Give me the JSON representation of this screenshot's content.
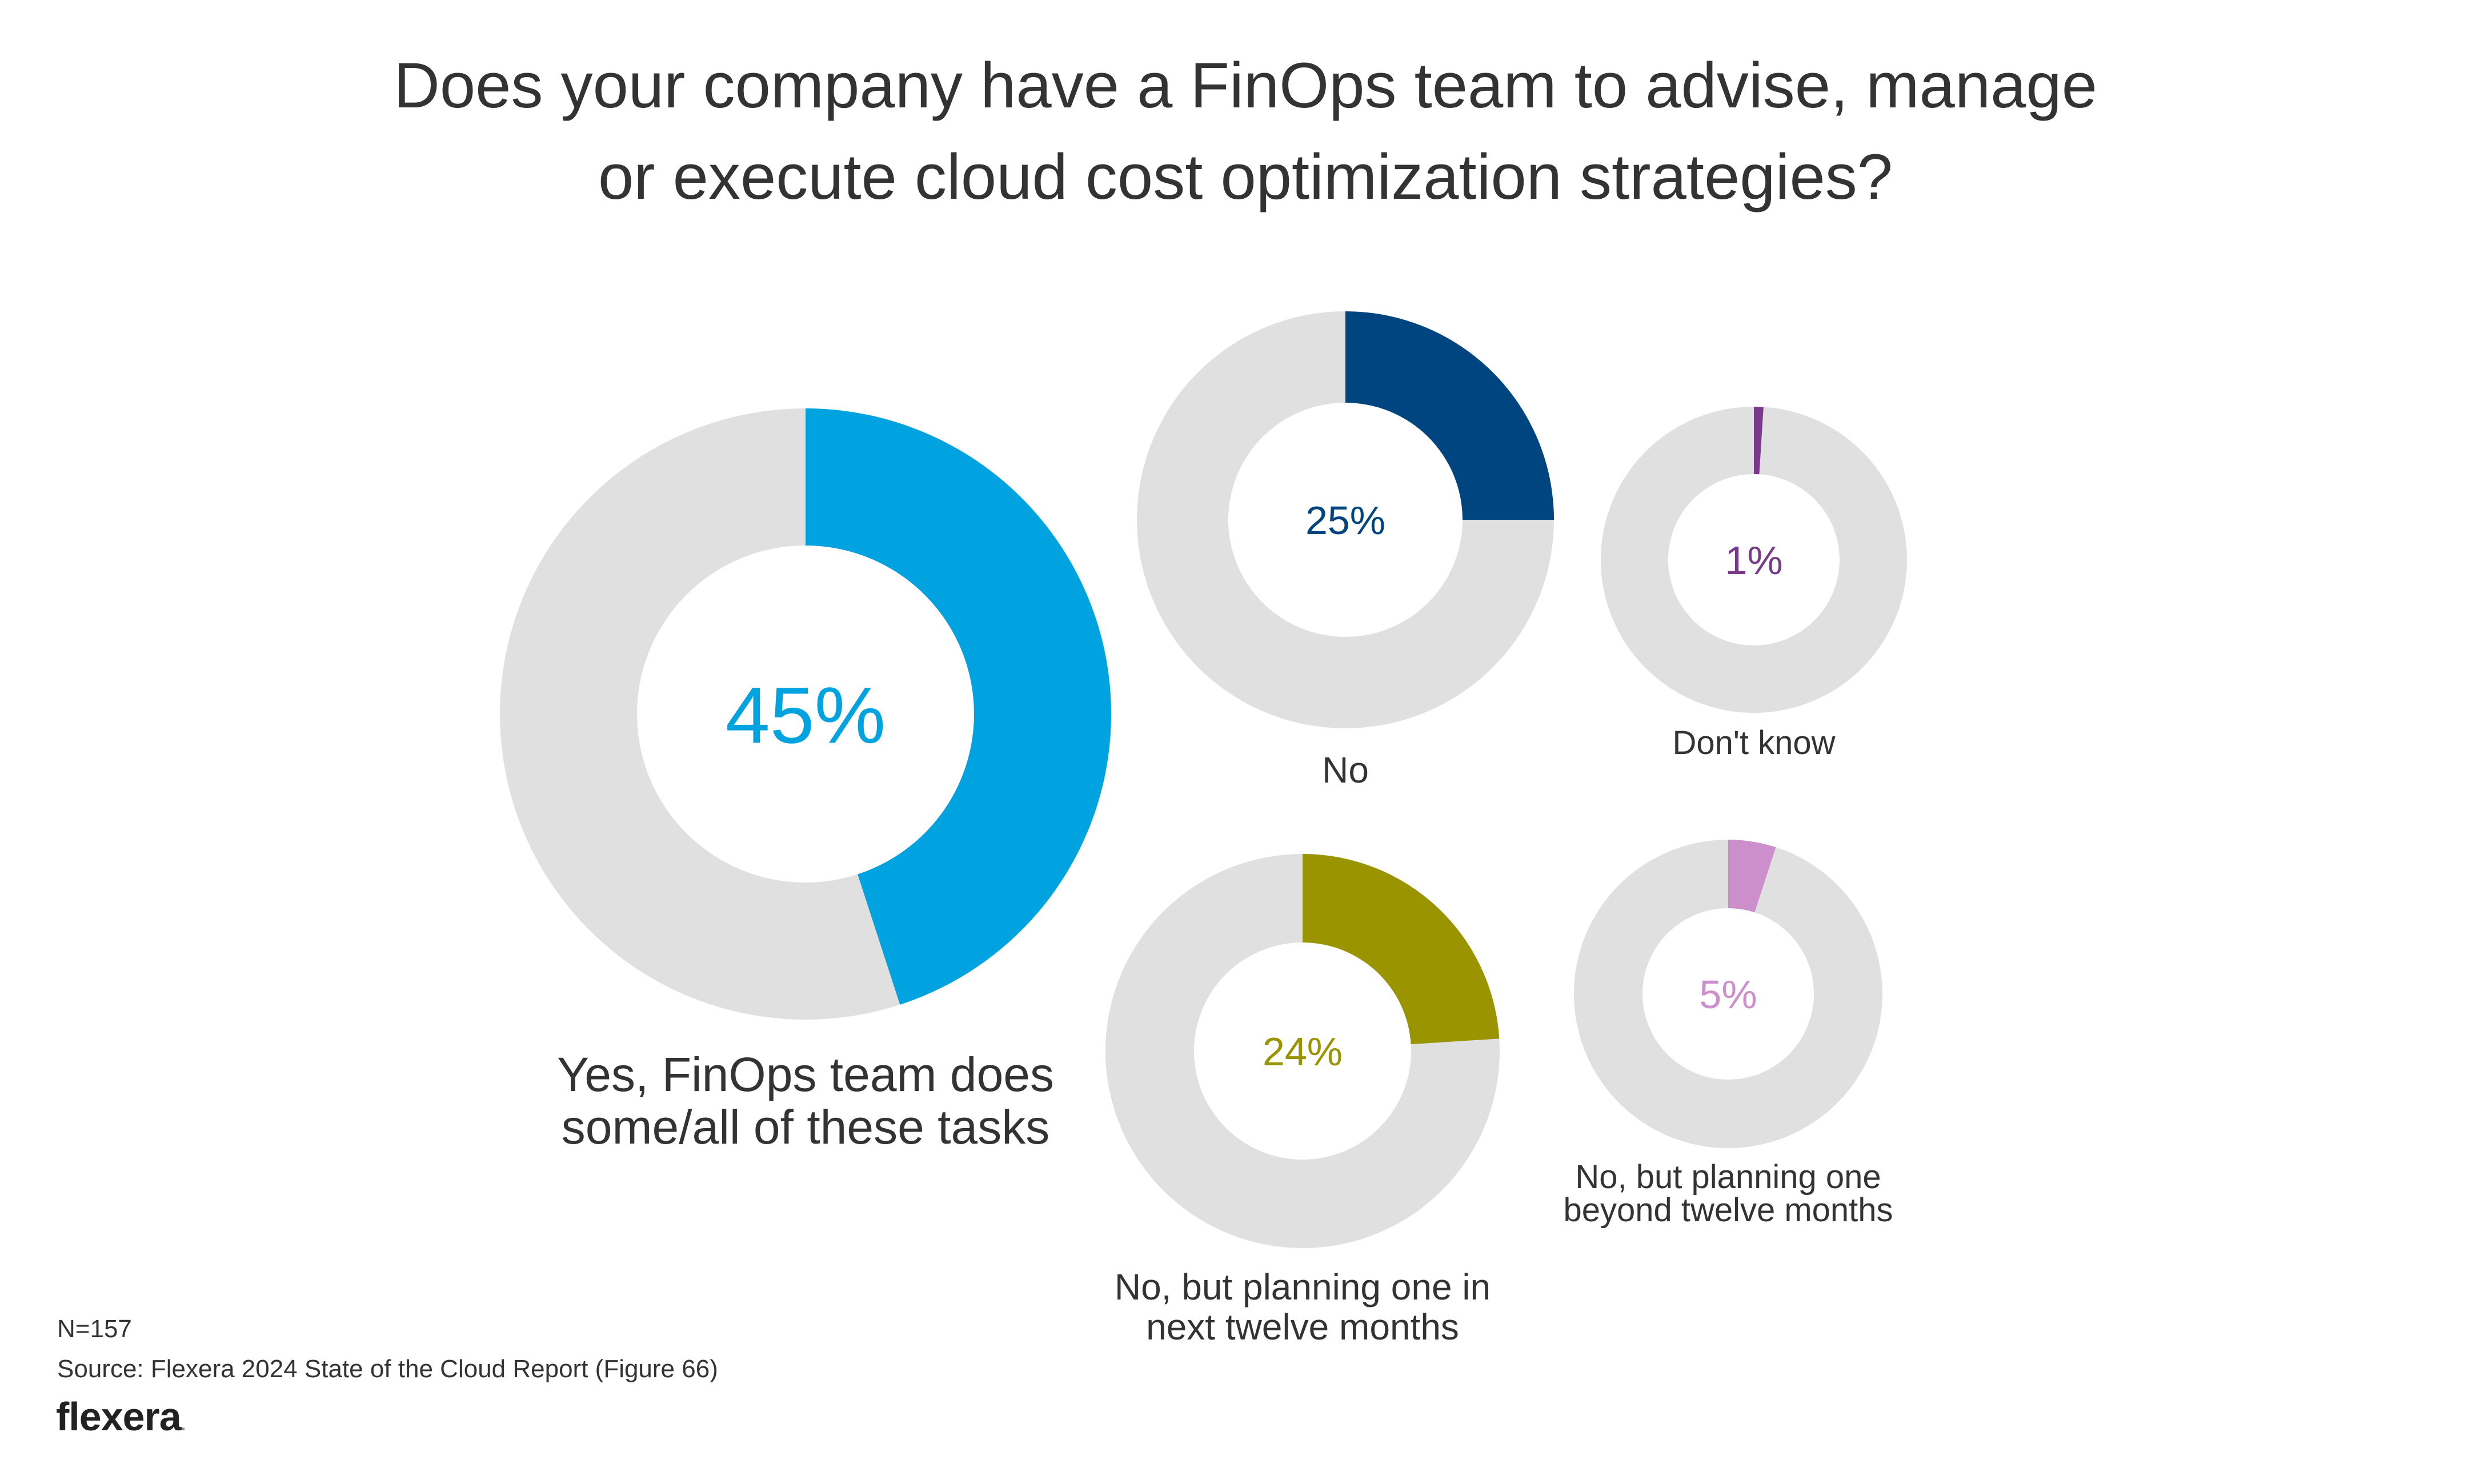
{
  "title_lines": [
    "Does your company have a FinOps team to advise, manage",
    "or execute cloud cost optimization strategies?"
  ],
  "chart_data": {
    "type": "pie",
    "title": "Does your company have a FinOps team to advise, manage or execute cloud cost optimization strategies?",
    "series": [
      {
        "label_lines": [
          "Yes, FinOps team does",
          "some/all of these tasks"
        ],
        "value": 45,
        "value_label": "45%",
        "color": "#00A3E0"
      },
      {
        "label_lines": [
          "No"
        ],
        "value": 25,
        "value_label": "25%",
        "color": "#004480"
      },
      {
        "label_lines": [
          "Don't know"
        ],
        "value": 1,
        "value_label": "1%",
        "color": "#7A3A8A"
      },
      {
        "label_lines": [
          "No, but planning one in",
          "next twelve months"
        ],
        "value": 24,
        "value_label": "24%",
        "color": "#999400"
      },
      {
        "label_lines": [
          "No, but planning one",
          "beyond twelve months"
        ],
        "value": 5,
        "value_label": "5%",
        "color": "#CC8FCC"
      }
    ],
    "track_color": "#E0E0E0"
  },
  "footer": {
    "n": "N=157",
    "source": "Source: Flexera 2024 State of the Cloud Report (Figure 66)",
    "logo": "flexera",
    "logo_dot": "."
  }
}
